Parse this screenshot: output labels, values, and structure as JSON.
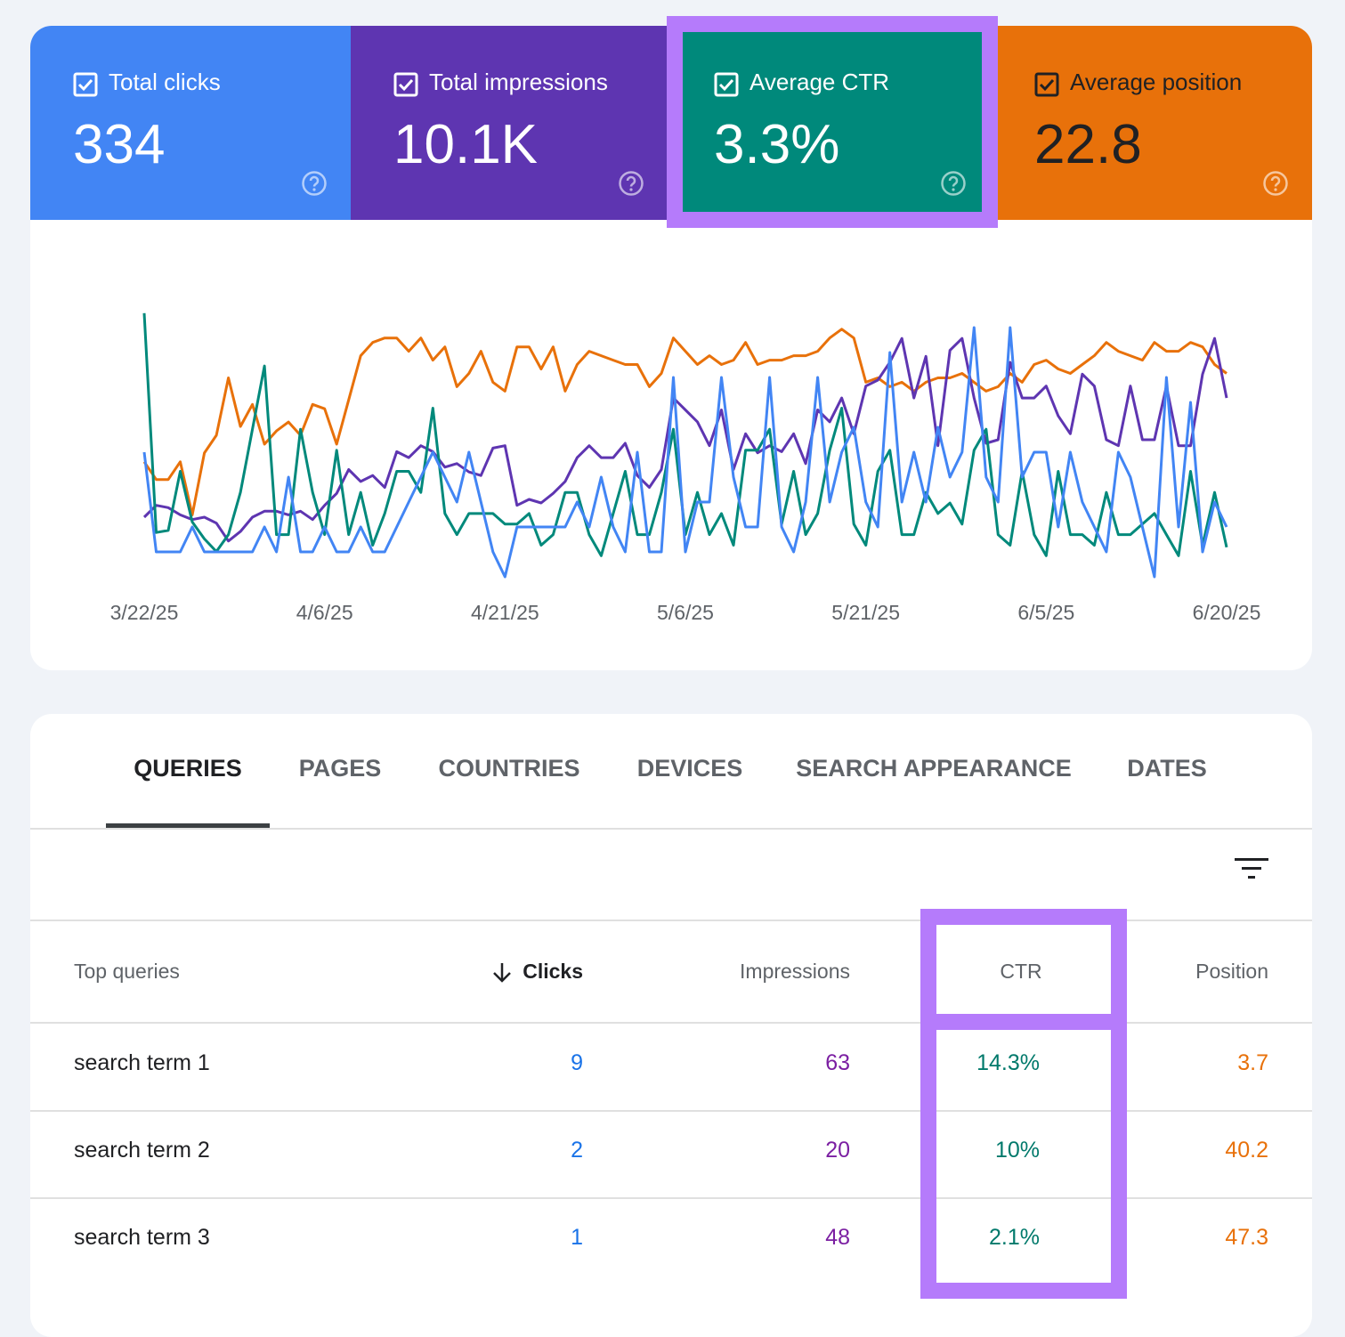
{
  "summary": [
    "334",
    "10.1K",
    "3.3%",
    "22.8"
  ],
  "chart_data": {
    "type": "line",
    "categories": [
      "3/22/25",
      null,
      null,
      null,
      null,
      null,
      null,
      null,
      null,
      null,
      null,
      null,
      null,
      null,
      null,
      "4/6/25",
      null,
      null,
      null,
      null,
      null,
      null,
      null,
      null,
      null,
      null,
      null,
      null,
      null,
      null,
      "4/21/25",
      null,
      null,
      null,
      null,
      null,
      null,
      null,
      null,
      null,
      null,
      null,
      null,
      null,
      null,
      "5/6/25",
      null,
      null,
      null,
      null,
      null,
      null,
      null,
      null,
      null,
      null,
      null,
      null,
      null,
      null,
      "5/21/25",
      null,
      null,
      null,
      null,
      null,
      null,
      null,
      null,
      null,
      null,
      null,
      null,
      null,
      null,
      "6/5/25",
      null,
      null,
      null,
      null,
      null,
      null,
      null,
      null,
      null,
      null,
      null,
      null,
      null,
      null,
      "6/20/25"
    ],
    "series": [
      {
        "name": "Total clicks",
        "color": "#4285f4",
        "ylim": [
          0,
          11
        ],
        "values": [
          5,
          1,
          1,
          1,
          2,
          1,
          1,
          1,
          1,
          1,
          2,
          1,
          4,
          1,
          1,
          2,
          1,
          1,
          2,
          1,
          1,
          2,
          3,
          4,
          5,
          4,
          3,
          5,
          3,
          1,
          0,
          2,
          2,
          2,
          2,
          2,
          3,
          2,
          4,
          2,
          1,
          5,
          1,
          1,
          8,
          1,
          3,
          3,
          8,
          4,
          2,
          2,
          8,
          2,
          1,
          3,
          8,
          3,
          5,
          6,
          3,
          2,
          9,
          3,
          5,
          3,
          6,
          4,
          5,
          10,
          4,
          3,
          10,
          4,
          5,
          5,
          2,
          5,
          3,
          2,
          1,
          5,
          4,
          2,
          0,
          8,
          2,
          7,
          1,
          3,
          2
        ]
      },
      {
        "name": "Total impressions",
        "color": "#5e35b1",
        "ylim": [
          0,
          230
        ],
        "values": [
          50,
          60,
          58,
          52,
          48,
          50,
          45,
          30,
          38,
          50,
          55,
          55,
          52,
          55,
          48,
          60,
          70,
          90,
          80,
          85,
          75,
          105,
          100,
          110,
          105,
          92,
          95,
          88,
          85,
          108,
          110,
          60,
          65,
          62,
          70,
          80,
          100,
          110,
          100,
          100,
          112,
          85,
          75,
          90,
          150,
          140,
          130,
          110,
          140,
          90,
          120,
          104,
          110,
          105,
          120,
          95,
          140,
          130,
          150,
          120,
          160,
          165,
          180,
          200,
          150,
          185,
          110,
          190,
          200,
          150,
          112,
          115,
          180,
          150,
          150,
          160,
          135,
          120,
          170,
          160,
          115,
          110,
          160,
          115,
          115,
          160,
          110,
          110,
          170,
          200,
          150
        ]
      },
      {
        "name": "Average CTR",
        "color": "#00897b",
        "ylim": [
          0,
          13
        ],
        "values": [
          12.5,
          2.1,
          2.2,
          5,
          2.6,
          1.8,
          1.2,
          2,
          4,
          7,
          10,
          2,
          2,
          7,
          4,
          2,
          6,
          2,
          4,
          1.5,
          3,
          5,
          5,
          4,
          8,
          3,
          2,
          3,
          3,
          3,
          2.5,
          2.5,
          3,
          1.5,
          2,
          4,
          4,
          2,
          1,
          3,
          5,
          2,
          2,
          4,
          7,
          2,
          4,
          2,
          3,
          1.5,
          6,
          6,
          7,
          2.5,
          5,
          2,
          3,
          6,
          8,
          2.5,
          1.5,
          5,
          6,
          2,
          2,
          4,
          3,
          3.5,
          2.5,
          6,
          7,
          2,
          1.5,
          5,
          2,
          1,
          5,
          2,
          2,
          1.5,
          4,
          2,
          2,
          2.5,
          3,
          2,
          1,
          5,
          1.5,
          4,
          1.4
        ]
      },
      {
        "name": "Average position",
        "color": "#e8710a",
        "ylim": [
          70,
          8
        ],
        "values": [
          44,
          48,
          48,
          44,
          56,
          42,
          38,
          25,
          36,
          31,
          40,
          37,
          35,
          38,
          31,
          32,
          40,
          30,
          20,
          17,
          16,
          16,
          19,
          16,
          21,
          18,
          27,
          24,
          19,
          26,
          28,
          18,
          18,
          23,
          18,
          28,
          22,
          19,
          20,
          21,
          22,
          22,
          27,
          24,
          16,
          19,
          22,
          20,
          22,
          21,
          17,
          22,
          21,
          21,
          20,
          20,
          19,
          16,
          14,
          16,
          26,
          25,
          27,
          26,
          28,
          26,
          25,
          25,
          24,
          26,
          28,
          27,
          24,
          26,
          22,
          21,
          23,
          24,
          22,
          20,
          17,
          19,
          20,
          21,
          17,
          19,
          19,
          17,
          18,
          22,
          24
        ]
      }
    ]
  },
  "table": {
    "tabs": [
      "QUERIES",
      "PAGES",
      "COUNTRIES",
      "DEVICES",
      "SEARCH APPEARANCE",
      "DATES"
    ],
    "columns": [
      "Top queries",
      "Clicks",
      "Impressions",
      "CTR",
      "Position"
    ],
    "rows": [
      [
        "search term 1",
        "9",
        "63",
        "14.3%",
        "3.7"
      ],
      [
        "search term 2",
        "2",
        "20",
        "10%",
        "40.2"
      ],
      [
        "search term 3",
        "1",
        "48",
        "2.1%",
        "47.3"
      ]
    ]
  }
}
